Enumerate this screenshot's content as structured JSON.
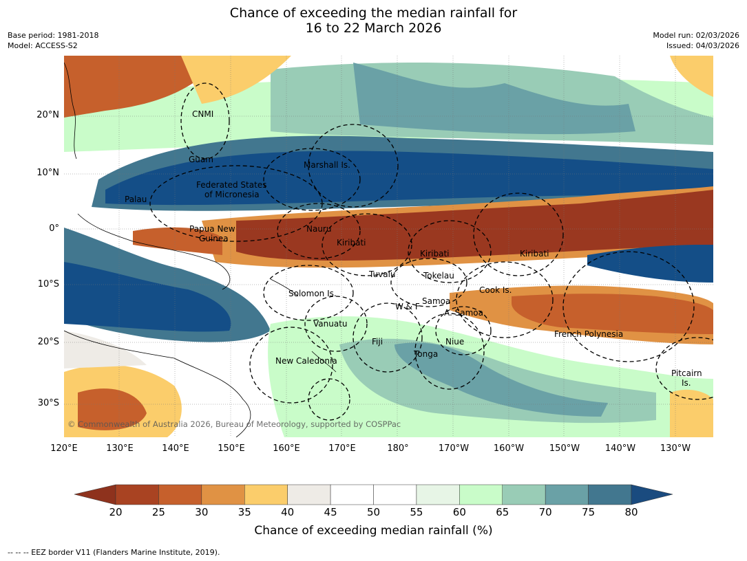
{
  "title": {
    "line1": "Chance of exceeding the median rainfall for",
    "line2": "16 to 22 March 2026"
  },
  "meta": {
    "base_period": "Base period: 1981-2018",
    "model": "Model: ACCESS-S2",
    "model_run": "Model run: 02/03/2026",
    "issued": "Issued: 04/03/2026"
  },
  "axes": {
    "lat_labels": [
      "20°N",
      "10°N",
      "0°",
      "10°S",
      "20°S",
      "30°S"
    ],
    "lon_labels": [
      "120°E",
      "130°E",
      "140°E",
      "150°E",
      "160°E",
      "170°E",
      "180°",
      "170°W",
      "160°W",
      "150°W",
      "140°W",
      "130°W"
    ]
  },
  "places": {
    "cnmi": "CNMI",
    "guam": "Guam",
    "marshall": "Marshall Is.",
    "fsm1": "Federated States",
    "fsm2": "of Micronesia",
    "palau": "Palau",
    "png1": "Papua New",
    "png2": "Guinea",
    "nauru": "Nauru",
    "kiribati_w": "Kiribati",
    "kiribati_c": "Kiribati",
    "kiribati_e": "Kiribati",
    "tuvalu": "Tuvalu",
    "tokelau": "Tokelau",
    "solomon": "Solomon Is.",
    "cook": "Cook Is.",
    "samoa": "Samoa",
    "wf": "W & F",
    "asamoa": "A. Samoa",
    "vanuatu": "Vanuatu",
    "fiji": "Fiji",
    "niue": "Niue",
    "french_polynesia": "French Polynesia",
    "tonga": "Tonga",
    "new_caledonia": "New Caledonia",
    "pitcairn1": "Pitcairn",
    "pitcairn2": "Is."
  },
  "copyright": "© Commonwealth of Australia 2026, Bureau of Meteorology, supported by COSPPac",
  "colorbar": {
    "ticks": [
      "20",
      "25",
      "30",
      "35",
      "40",
      "45",
      "50",
      "55",
      "60",
      "65",
      "70",
      "75",
      "80"
    ],
    "colors": [
      "#a94322",
      "#c6602c",
      "#e09244",
      "#fbcd6b",
      "#eeebe6",
      "#ffffff",
      "#ffffff",
      "#e7f5e6",
      "#c9fcc9",
      "#99ccb6",
      "#6aa1a6",
      "#42778f"
    ],
    "low_extend_color": "#8e321d",
    "high_extend_color": "#1a4b7f",
    "label": "Chance of exceeding median rainfall (%)"
  },
  "footnote": "--  --  -- EEZ border V11 (Flanders Marine Institute, 2019).",
  "map_colors": {
    "dry_strong": "#9a3820",
    "dry": "#c6602c",
    "dry_light": "#e09244",
    "dry_faint": "#fbcd6b",
    "neutral": "#eeebe6",
    "wet_faint": "#c9fcc9",
    "wet_light": "#99ccb6",
    "wet": "#6aa1a6",
    "wet_mid": "#42778f",
    "wet_strong": "#144e87"
  }
}
